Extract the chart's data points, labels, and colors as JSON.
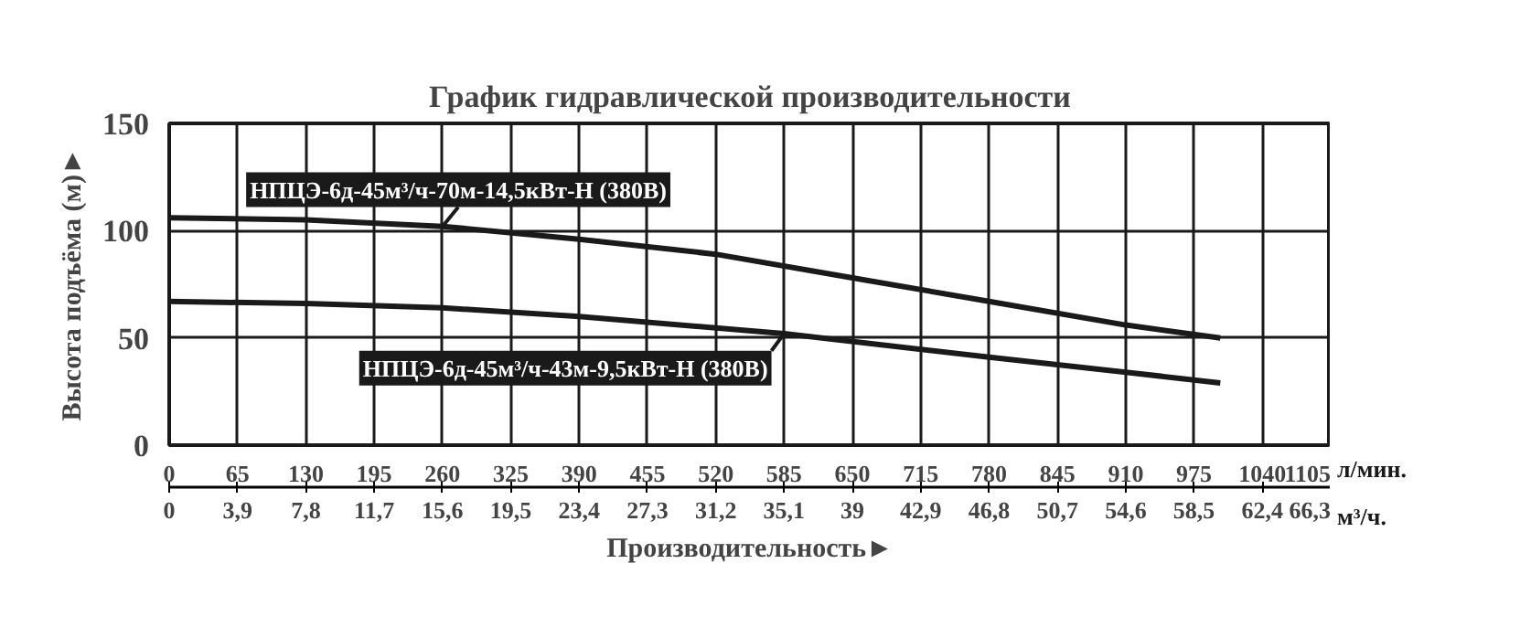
{
  "chart_data": {
    "type": "line",
    "title": "График гидравлической производительности",
    "xlabel": "Производительность►",
    "ylabel": "Высота подъёма (м)►",
    "annotations": [
      "л/мин.",
      "м³/ч."
    ],
    "xlim": [
      0,
      1105
    ],
    "xticks": [
      0,
      65,
      130,
      195,
      260,
      325,
      390,
      455,
      520,
      585,
      650,
      715,
      780,
      845,
      910,
      975,
      1040,
      1105
    ],
    "x2lim": [
      0,
      66.3
    ],
    "x2ticks": [
      0,
      {
        "value": 3.9,
        "label": "3,9"
      },
      {
        "value": 7.8,
        "label": "7,8"
      },
      {
        "value": 11.7,
        "label": "11,7"
      },
      {
        "value": 15.6,
        "label": "15,6"
      },
      {
        "value": 19.5,
        "label": "19,5"
      },
      {
        "value": 23.4,
        "label": "23,4"
      },
      {
        "value": 27.3,
        "label": "27,3"
      },
      {
        "value": 31.2,
        "label": "31,2"
      },
      {
        "value": 35.1,
        "label": "35,1"
      },
      39,
      {
        "value": 42.9,
        "label": "42,9"
      },
      {
        "value": 46.8,
        "label": "46,8"
      },
      {
        "value": 50.7,
        "label": "50,7"
      },
      {
        "value": 54.6,
        "label": "54,6"
      },
      {
        "value": 58.5,
        "label": "58,5"
      },
      {
        "value": 62.4,
        "label": "62,4"
      },
      {
        "value": 66.3,
        "label": "66,3"
      }
    ],
    "ylim": [
      0,
      150
    ],
    "yticks": [
      0,
      50,
      100,
      150
    ],
    "grid": true,
    "marker": "none",
    "line_style": "solid",
    "series": [
      {
        "name": "НПЦЭ-6д-45м³/ч-70м-14,5кВт-Н (380В)",
        "color": "#1a1a1a",
        "x": [
          0,
          130,
          260,
          390,
          520,
          650,
          780,
          910,
          1000
        ],
        "values": [
          106,
          105,
          102,
          96,
          89,
          78,
          67,
          56,
          50
        ]
      },
      {
        "name": "НПЦЭ-6д-45м³/ч-43м-9,5кВт-Н (380В)",
        "color": "#1a1a1a",
        "x": [
          0,
          130,
          260,
          390,
          585,
          780,
          910,
          1000
        ],
        "values": [
          67,
          66,
          64,
          60,
          52,
          41,
          34,
          29
        ]
      }
    ]
  }
}
